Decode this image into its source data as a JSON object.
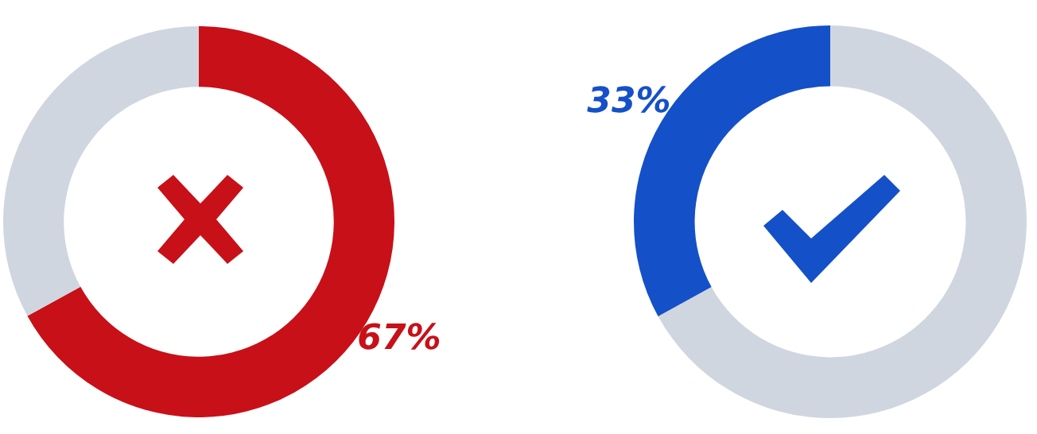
{
  "chart_data": [
    {
      "type": "donut",
      "categories": [
        null,
        null
      ],
      "values": [
        67,
        33
      ],
      "colors": [
        "#c81018",
        "#d0d6e0"
      ],
      "value_labels": [
        "67%",
        null
      ],
      "legend": false
    },
    {
      "type": "donut",
      "categories": [
        null,
        null
      ],
      "values": [
        67,
        33
      ],
      "colors": [
        "#d0d6e0",
        "#1450c8"
      ],
      "value_labels": [
        null,
        "33%"
      ],
      "legend": false
    }
  ]
}
